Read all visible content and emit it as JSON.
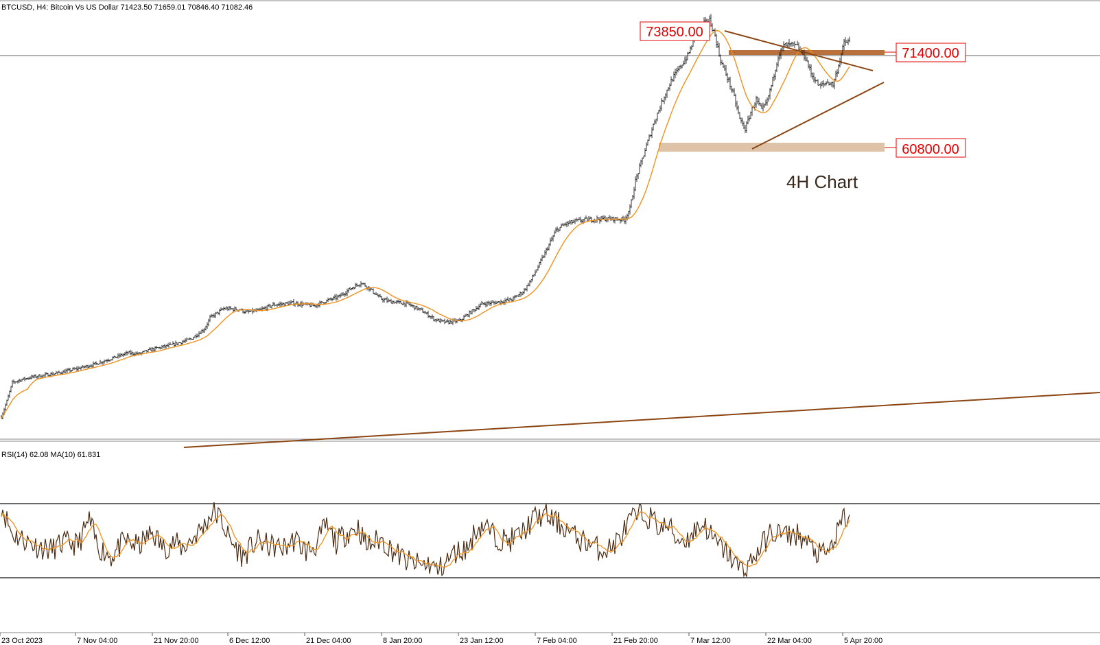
{
  "header": {
    "symbol_line": "BTCUSD, H4:  Bitcoin Vs US Dollar  71423.50 71659.01 70846.40 71082.46"
  },
  "indicator": {
    "label": "RSI(14) 62.08 MA(10) 61.831",
    "upper_level": 70,
    "lower_level": 30
  },
  "annotation": {
    "text": "4H Chart"
  },
  "colors": {
    "candles": "#1a1a1a",
    "ma": "#f0901e",
    "trendline": "#8b4513",
    "zone_dark": "#b8703c",
    "zone_light": "#d8b89a",
    "level_text": "#e00000",
    "rsi": "#4a2a10",
    "rsi_ma": "#f0901e"
  },
  "chart_data": {
    "type": "candlestick",
    "symbol": "BTCUSD",
    "timeframe": "H4",
    "x_tick_labels": [
      "23 Oct 2023",
      "7 Nov 04:00",
      "21 Nov 20:00",
      "6 Dec 12:00",
      "21 Dec 04:00",
      "8 Jan 20:00",
      "23 Jan 12:00",
      "7 Feb 04:00",
      "21 Feb 20:00",
      "7 Mar 12:00",
      "22 Mar 04:00",
      "5 Apr 20:00"
    ],
    "price_path": [
      [
        0,
        30500
      ],
      [
        4,
        32200
      ],
      [
        8,
        34200
      ],
      [
        14,
        34500
      ],
      [
        22,
        34800
      ],
      [
        40,
        35200
      ],
      [
        55,
        35700
      ],
      [
        68,
        36200
      ],
      [
        82,
        36900
      ],
      [
        92,
        37400
      ],
      [
        100,
        37300
      ],
      [
        110,
        37800
      ],
      [
        125,
        38300
      ],
      [
        138,
        38900
      ],
      [
        148,
        40000
      ],
      [
        152,
        41200
      ],
      [
        162,
        42200
      ],
      [
        174,
        42100
      ],
      [
        178,
        41800
      ],
      [
        188,
        42000
      ],
      [
        198,
        42600
      ],
      [
        212,
        42800
      ],
      [
        228,
        42500
      ],
      [
        236,
        43000
      ],
      [
        246,
        43500
      ],
      [
        256,
        44500
      ],
      [
        262,
        45000
      ],
      [
        268,
        44400
      ],
      [
        276,
        43300
      ],
      [
        282,
        43000
      ],
      [
        296,
        42700
      ],
      [
        306,
        42000
      ],
      [
        316,
        41000
      ],
      [
        324,
        40700
      ],
      [
        334,
        40900
      ],
      [
        342,
        41800
      ],
      [
        350,
        42700
      ],
      [
        362,
        42900
      ],
      [
        372,
        43200
      ],
      [
        380,
        44000
      ],
      [
        386,
        45300
      ],
      [
        392,
        47000
      ],
      [
        398,
        48800
      ],
      [
        404,
        50600
      ],
      [
        410,
        51300
      ],
      [
        420,
        51700
      ],
      [
        434,
        51900
      ],
      [
        446,
        51900
      ],
      [
        454,
        51800
      ],
      [
        458,
        53000
      ],
      [
        462,
        56000
      ],
      [
        470,
        59800
      ],
      [
        476,
        62500
      ],
      [
        482,
        64800
      ],
      [
        488,
        66800
      ],
      [
        494,
        68200
      ],
      [
        500,
        69500
      ],
      [
        506,
        71800
      ],
      [
        510,
        72800
      ],
      [
        516,
        73400
      ],
      [
        520,
        71700
      ],
      [
        524,
        69000
      ],
      [
        530,
        66800
      ],
      [
        534,
        65000
      ],
      [
        538,
        62700
      ],
      [
        542,
        61600
      ],
      [
        546,
        63400
      ],
      [
        550,
        64800
      ],
      [
        554,
        63600
      ],
      [
        558,
        64600
      ],
      [
        562,
        66900
      ],
      [
        566,
        69500
      ],
      [
        570,
        70600
      ],
      [
        576,
        70700
      ],
      [
        580,
        70500
      ],
      [
        586,
        69300
      ],
      [
        590,
        67600
      ],
      [
        596,
        66200
      ],
      [
        602,
        66700
      ],
      [
        606,
        66400
      ],
      [
        610,
        68500
      ],
      [
        614,
        70900
      ],
      [
        618,
        71100
      ]
    ],
    "ma_period": 20,
    "rsi_series": [
      [
        0,
        72
      ],
      [
        3,
        65
      ],
      [
        8,
        55
      ],
      [
        16,
        52
      ],
      [
        26,
        48
      ],
      [
        36,
        46
      ],
      [
        46,
        50
      ],
      [
        56,
        49
      ],
      [
        64,
        63
      ],
      [
        70,
        48
      ],
      [
        80,
        42
      ],
      [
        90,
        51
      ],
      [
        100,
        48
      ],
      [
        110,
        56
      ],
      [
        118,
        47
      ],
      [
        126,
        50
      ],
      [
        132,
        47
      ],
      [
        140,
        53
      ],
      [
        148,
        60
      ],
      [
        154,
        68
      ],
      [
        160,
        64
      ],
      [
        166,
        52
      ],
      [
        176,
        42
      ],
      [
        186,
        51
      ],
      [
        196,
        48
      ],
      [
        206,
        47
      ],
      [
        214,
        52
      ],
      [
        222,
        45
      ],
      [
        230,
        49
      ],
      [
        236,
        60
      ],
      [
        244,
        50
      ],
      [
        252,
        56
      ],
      [
        260,
        59
      ],
      [
        266,
        48
      ],
      [
        276,
        52
      ],
      [
        286,
        45
      ],
      [
        296,
        39
      ],
      [
        306,
        37
      ],
      [
        312,
        38
      ],
      [
        318,
        34
      ],
      [
        324,
        39
      ],
      [
        330,
        44
      ],
      [
        340,
        47
      ],
      [
        346,
        58
      ],
      [
        352,
        60
      ],
      [
        360,
        53
      ],
      [
        370,
        51
      ],
      [
        380,
        56
      ],
      [
        388,
        64
      ],
      [
        396,
        66
      ],
      [
        404,
        62
      ],
      [
        412,
        58
      ],
      [
        420,
        52
      ],
      [
        428,
        50
      ],
      [
        436,
        46
      ],
      [
        444,
        47
      ],
      [
        452,
        54
      ],
      [
        458,
        63
      ],
      [
        466,
        66
      ],
      [
        474,
        64
      ],
      [
        480,
        58
      ],
      [
        486,
        60
      ],
      [
        492,
        52
      ],
      [
        500,
        52
      ],
      [
        506,
        58
      ],
      [
        512,
        61
      ],
      [
        520,
        50
      ],
      [
        528,
        45
      ],
      [
        532,
        41
      ],
      [
        538,
        35
      ],
      [
        542,
        36
      ],
      [
        546,
        39
      ],
      [
        552,
        46
      ],
      [
        560,
        55
      ],
      [
        566,
        56
      ],
      [
        572,
        54
      ],
      [
        580,
        55
      ],
      [
        588,
        49
      ],
      [
        596,
        43
      ],
      [
        602,
        44
      ],
      [
        608,
        53
      ],
      [
        614,
        65
      ],
      [
        618,
        62
      ]
    ],
    "levels": [
      {
        "label": "73850.00",
        "value": 73850
      },
      {
        "label": "71400.00",
        "value": 71400
      },
      {
        "label": "60800.00",
        "value": 60800
      }
    ],
    "y_range": [
      27200,
      75550
    ],
    "rsi_range": [
      0,
      100
    ],
    "moving_average": true,
    "grid": false
  }
}
